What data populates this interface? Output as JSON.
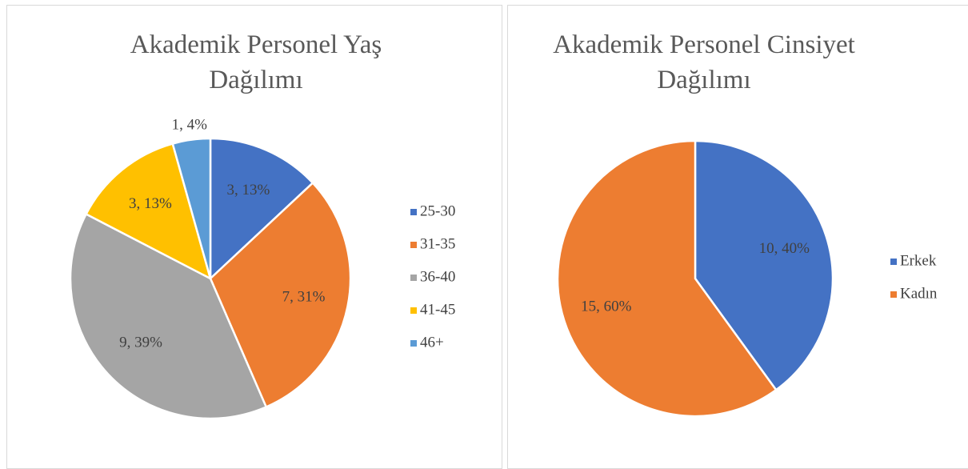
{
  "chart_data": [
    {
      "type": "pie",
      "title": "Akademik Personel Yaş Dağılımı",
      "categories": [
        "25-30",
        "31-35",
        "36-40",
        "41-45",
        "46+"
      ],
      "values": [
        3,
        7,
        9,
        3,
        1
      ],
      "value_labels": [
        "3, 13%",
        "7, 31%",
        "9, 39%",
        "3, 13%",
        "1, 4%"
      ],
      "colors": [
        "#4472c4",
        "#ed7d31",
        "#a5a5a5",
        "#ffc000",
        "#5b9bd5"
      ],
      "legend": "right"
    },
    {
      "type": "pie",
      "title": "Akademik Personel Cinsiyet Dağılımı",
      "categories": [
        "Erkek",
        "Kadın"
      ],
      "values": [
        10,
        15
      ],
      "value_labels": [
        "10, 40%",
        "15, 60%"
      ],
      "colors": [
        "#4472c4",
        "#ed7d31"
      ],
      "legend": "right"
    }
  ]
}
